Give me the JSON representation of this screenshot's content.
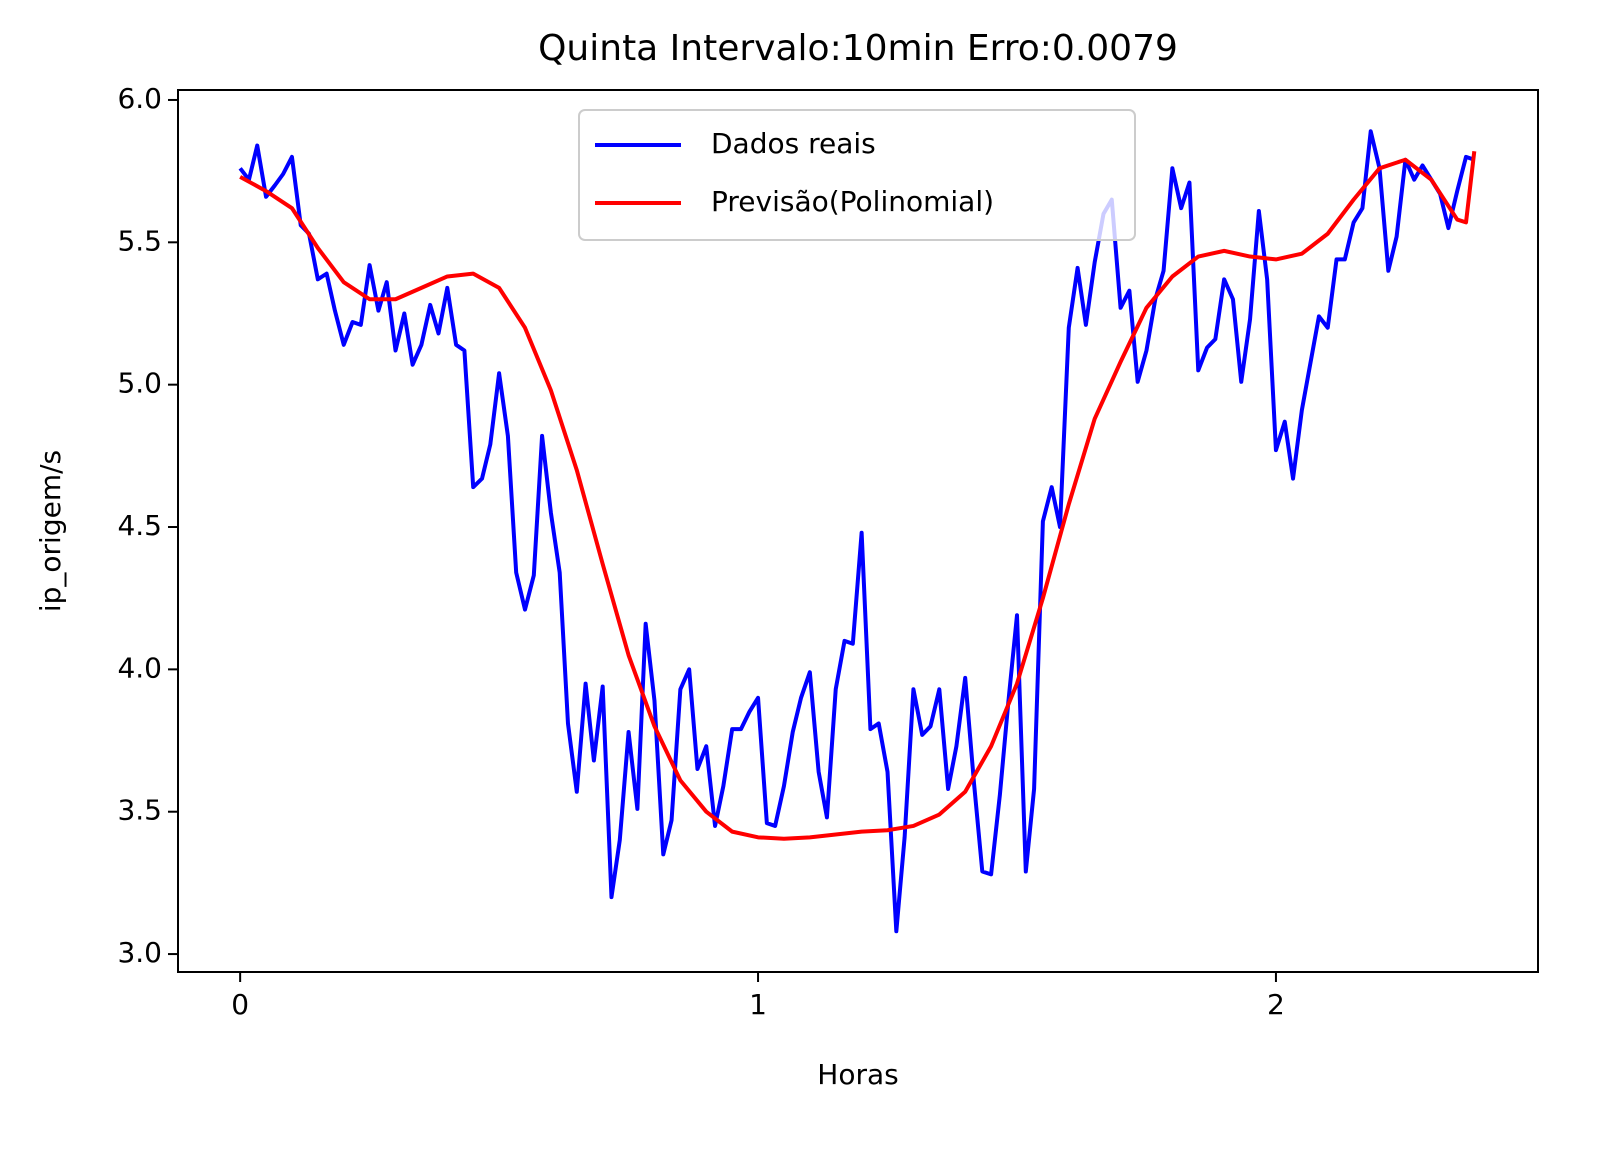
{
  "chart_data": {
    "type": "line",
    "title": "Quinta Intervalo:10min Erro:0.0079",
    "xlabel": "Horas",
    "ylabel": "ip_origem/s",
    "x": [
      0,
      0.017,
      0.033,
      0.05,
      0.067,
      0.083,
      0.1,
      0.117,
      0.133,
      0.15,
      0.167,
      0.183,
      0.2,
      0.217,
      0.233,
      0.25,
      0.267,
      0.283,
      0.3,
      0.317,
      0.333,
      0.35,
      0.367,
      0.383,
      0.4,
      0.417,
      0.433,
      0.45,
      0.467,
      0.483,
      0.5,
      0.517,
      0.533,
      0.55,
      0.567,
      0.583,
      0.6,
      0.617,
      0.633,
      0.65,
      0.667,
      0.683,
      0.7,
      0.717,
      0.733,
      0.75,
      0.767,
      0.783,
      0.8,
      0.817,
      0.833,
      0.85,
      0.867,
      0.883,
      0.9,
      0.917,
      0.933,
      0.95,
      0.967,
      0.983,
      1,
      1.017,
      1.033,
      1.05,
      1.067,
      1.083,
      1.1,
      1.117,
      1.133,
      1.15,
      1.167,
      1.183,
      1.2,
      1.217,
      1.233,
      1.25,
      1.267,
      1.283,
      1.3,
      1.317,
      1.333,
      1.35,
      1.367,
      1.383,
      1.4,
      1.417,
      1.433,
      1.45,
      1.467,
      1.483,
      1.5,
      1.517,
      1.533,
      1.55,
      1.567,
      1.583,
      1.6,
      1.617,
      1.633,
      1.65,
      1.667,
      1.683,
      1.7,
      1.717,
      1.733,
      1.75,
      1.767,
      1.783,
      1.8,
      1.817,
      1.833,
      1.85,
      1.867,
      1.883,
      1.9,
      1.917,
      1.933,
      1.95,
      1.967,
      1.983,
      2,
      2.017,
      2.033,
      2.05,
      2.067,
      2.083,
      2.1,
      2.117,
      2.133,
      2.15,
      2.167,
      2.183,
      2.2,
      2.217,
      2.233,
      2.25,
      2.267,
      2.283,
      2.3,
      2.317,
      2.333,
      2.35,
      2.367,
      2.383
    ],
    "series": [
      {
        "name": "Dados reais",
        "color": "#0000ff",
        "values": [
          5.76,
          5.72,
          5.84,
          5.66,
          5.7,
          5.74,
          5.8,
          5.56,
          5.53,
          5.37,
          5.39,
          5.26,
          5.14,
          5.22,
          5.21,
          5.42,
          5.26,
          5.36,
          5.12,
          5.25,
          5.07,
          5.14,
          5.28,
          5.18,
          5.34,
          5.14,
          5.12,
          4.64,
          4.67,
          4.79,
          5.04,
          4.82,
          4.34,
          4.21,
          4.33,
          4.82,
          4.55,
          4.34,
          3.81,
          3.57,
          3.95,
          3.68,
          3.94,
          3.2,
          3.4,
          3.78,
          3.51,
          4.16,
          3.89,
          3.35,
          3.47,
          3.93,
          4.0,
          3.65,
          3.73,
          3.45,
          3.59,
          3.79,
          3.79,
          3.85,
          3.9,
          3.46,
          3.45,
          3.59,
          3.78,
          3.9,
          3.99,
          3.64,
          3.48,
          3.93,
          4.1,
          4.09,
          4.48,
          3.79,
          3.81,
          3.64,
          3.08,
          3.41,
          3.93,
          3.77,
          3.8,
          3.93,
          3.58,
          3.73,
          3.97,
          3.6,
          3.29,
          3.28,
          3.56,
          3.88,
          4.19,
          3.29,
          3.58,
          4.52,
          4.64,
          4.5,
          5.2,
          5.41,
          5.21,
          5.43,
          5.6,
          5.65,
          5.27,
          5.33,
          5.01,
          5.12,
          5.3,
          5.4,
          5.76,
          5.62,
          5.71,
          5.05,
          5.13,
          5.16,
          5.37,
          5.3,
          5.01,
          5.23,
          5.61,
          5.37,
          4.77,
          4.87,
          4.67,
          4.91,
          5.08,
          5.24,
          5.2,
          5.44,
          5.44,
          5.57,
          5.62,
          5.89,
          5.76,
          5.4,
          5.52,
          5.79,
          5.72,
          5.77,
          5.72,
          5.67,
          5.55,
          5.68,
          5.8,
          5.79
        ]
      },
      {
        "name": "Previsão(Polinomial)",
        "color": "#ff0000",
        "x": [
          0,
          0.05,
          0.1,
          0.15,
          0.2,
          0.25,
          0.3,
          0.35,
          0.4,
          0.45,
          0.5,
          0.55,
          0.6,
          0.65,
          0.7,
          0.75,
          0.8,
          0.85,
          0.9,
          0.95,
          1,
          1.05,
          1.1,
          1.15,
          1.2,
          1.25,
          1.3,
          1.35,
          1.4,
          1.45,
          1.5,
          1.55,
          1.6,
          1.65,
          1.7,
          1.75,
          1.8,
          1.85,
          1.9,
          1.95,
          2,
          2.05,
          2.1,
          2.15,
          2.2,
          2.25,
          2.3,
          2.35,
          2.367,
          2.383
        ],
        "values": [
          5.73,
          5.68,
          5.62,
          5.48,
          5.36,
          5.3,
          5.3,
          5.34,
          5.38,
          5.39,
          5.34,
          5.2,
          4.98,
          4.7,
          4.37,
          4.05,
          3.8,
          3.61,
          3.5,
          3.43,
          3.41,
          3.405,
          3.41,
          3.42,
          3.43,
          3.435,
          3.45,
          3.49,
          3.57,
          3.73,
          3.95,
          4.25,
          4.58,
          4.88,
          5.08,
          5.27,
          5.38,
          5.45,
          5.47,
          5.45,
          5.44,
          5.46,
          5.53,
          5.65,
          5.76,
          5.79,
          5.72,
          5.58,
          5.57,
          5.82
        ]
      }
    ],
    "xlim": [
      -0.12,
      2.506
    ],
    "ylim": [
      2.937,
      6.035
    ],
    "xticks": [
      0,
      1,
      2
    ],
    "yticks": [
      {
        "value": 3,
        "label": "3.0"
      },
      3.5,
      {
        "value": 4,
        "label": "4.0"
      },
      4.5,
      {
        "value": 5,
        "label": "5.0"
      },
      5.5,
      {
        "value": 6,
        "label": "6.0"
      }
    ],
    "legend": "upper center",
    "grid": false
  }
}
